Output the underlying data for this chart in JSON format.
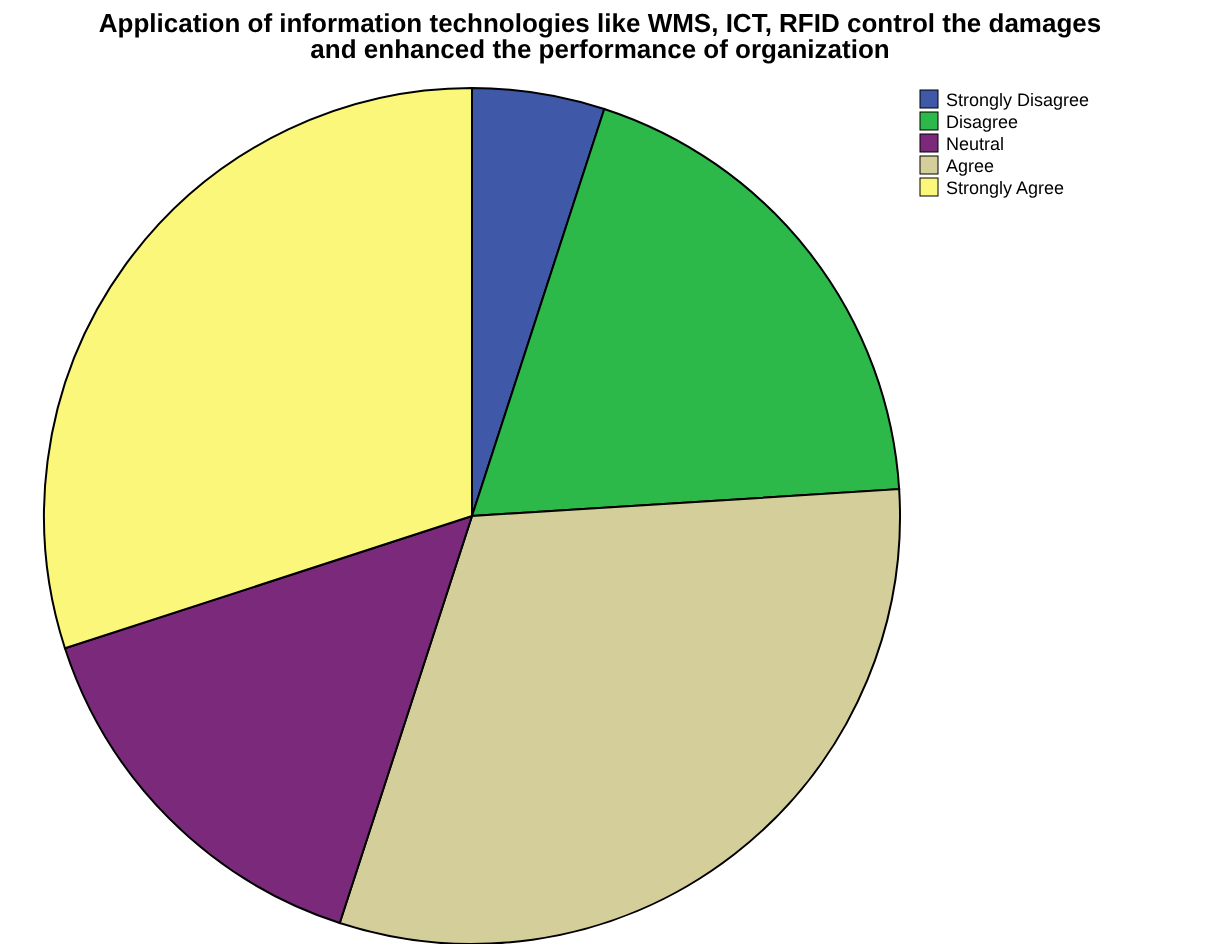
{
  "chart_data": {
    "type": "pie",
    "title": "Application of information technologies like WMS, ICT, RFID control the damages and enhanced the performance of organization",
    "categories": [
      "Strongly Disagree",
      "Disagree",
      "Neutral",
      "Agree",
      "Strongly Agree"
    ],
    "values": [
      5,
      19,
      15,
      31,
      30
    ],
    "colors": [
      "#3f58a8",
      "#2db84a",
      "#7b2a7b",
      "#d4cf9a",
      "#fbf77a"
    ],
    "legend": "top right"
  }
}
